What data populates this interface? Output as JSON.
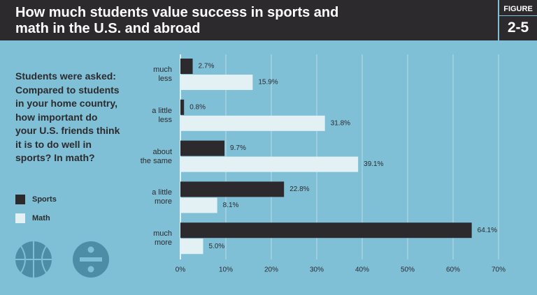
{
  "chart_data": {
    "type": "bar",
    "orientation": "horizontal",
    "title": "How much students value success in sports and math in the U.S. and abroad",
    "figure_label": "FIGURE",
    "figure_number": "2-5",
    "subtitle": "Students were asked: Compared to students in your home country, how important do your U.S. friends think it is to do well in sports? In math?",
    "categories": [
      "much\nless",
      "a little\nless",
      "about\nthe same",
      "a little\nmore",
      "much\nmore"
    ],
    "series": [
      {
        "name": "Sports",
        "color": "#2c2a2d",
        "values": [
          2.7,
          0.8,
          9.7,
          22.8,
          64.1
        ],
        "value_labels": [
          "2.7%",
          "0.8%",
          "9.7%",
          "22.8%",
          "64.1%"
        ]
      },
      {
        "name": "Math",
        "color": "#e3f1f5",
        "values": [
          15.9,
          31.8,
          39.1,
          8.1,
          5.0
        ],
        "value_labels": [
          "15.9%",
          "31.8%",
          "39.1%",
          "8.1%",
          "5.0%"
        ]
      }
    ],
    "xlim": [
      0,
      70
    ],
    "xticks": [
      {
        "value": 0,
        "label": "0%"
      },
      {
        "value": 10,
        "label": "10%"
      },
      {
        "value": 20,
        "label": "20%"
      },
      {
        "value": 30,
        "label": "30%"
      },
      {
        "value": 40,
        "label": "40%"
      },
      {
        "value": 50,
        "label": "50%"
      },
      {
        "value": 60,
        "label": "60%"
      },
      {
        "value": 70,
        "label": "70%"
      }
    ],
    "grid": true,
    "legend": "left"
  }
}
